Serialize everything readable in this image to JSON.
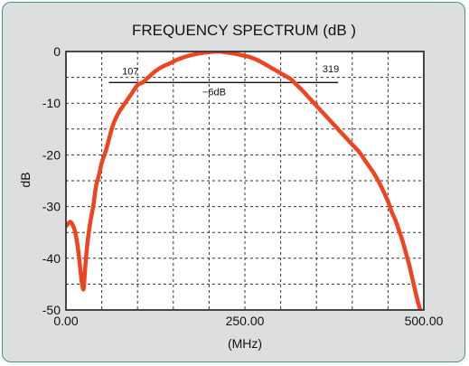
{
  "colors": {
    "panel_bg": "#dcdee0",
    "panel_border": "#3b9a7e",
    "plot_bg": "#ffffff",
    "curve": "#ee4422",
    "grid": "#333333",
    "text": "#111111"
  },
  "chart_data": {
    "type": "line",
    "title": "FREQUENCY SPECTRUM (dB )",
    "xlabel": "(MHz)",
    "ylabel": "dB",
    "xlim": [
      0,
      500
    ],
    "ylim": [
      -50,
      0
    ],
    "x_tick_labels": [
      {
        "value": 0,
        "label": "0.00"
      },
      {
        "value": 250,
        "label": "250.00"
      },
      {
        "value": 500,
        "label": "500.00"
      }
    ],
    "y_tick_labels": [
      {
        "value": 0,
        "label": "0"
      },
      {
        "value": -10,
        "label": "-10"
      },
      {
        "value": -20,
        "label": "-20"
      },
      {
        "value": -30,
        "label": "-30"
      },
      {
        "value": -40,
        "label": "-40"
      },
      {
        "value": -50,
        "label": "-50"
      }
    ],
    "x_grid": [
      0,
      50,
      100,
      150,
      200,
      250,
      300,
      350,
      400,
      450,
      500
    ],
    "y_grid": [
      0,
      -5,
      -10,
      -15,
      -20,
      -25,
      -30,
      -35,
      -40,
      -45,
      -50
    ],
    "grid": true,
    "series": [
      {
        "x": [
          0,
          5,
          8,
          12,
          15,
          18,
          20,
          22,
          24,
          25,
          26,
          28,
          30,
          34,
          38,
          42,
          46,
          50,
          55,
          60,
          65,
          70,
          75,
          80,
          90,
          100,
          107,
          115,
          125,
          135,
          145,
          155,
          165,
          175,
          185,
          195,
          205,
          215,
          225,
          235,
          245,
          255,
          265,
          275,
          285,
          295,
          305,
          315,
          319,
          330,
          340,
          350,
          360,
          370,
          380,
          390,
          400,
          410,
          420,
          430,
          440,
          450,
          455,
          460,
          465,
          470,
          475,
          480,
          485,
          490,
          495,
          500
        ],
        "y": [
          -33.8,
          -33,
          -33.2,
          -34.5,
          -36.5,
          -39.5,
          -42,
          -44.5,
          -46,
          -45.5,
          -43.5,
          -40,
          -37,
          -33,
          -30,
          -26,
          -24,
          -21.5,
          -19.5,
          -17,
          -14.5,
          -12.8,
          -11.5,
          -10.5,
          -8.5,
          -6.5,
          -6,
          -5,
          -3.8,
          -2.9,
          -2.3,
          -1.6,
          -1.1,
          -0.7,
          -0.4,
          -0.2,
          -0.05,
          0,
          -0.2,
          -0.4,
          -0.7,
          -1,
          -1.5,
          -2.2,
          -3,
          -3.8,
          -4.6,
          -5.4,
          -6,
          -7.5,
          -9,
          -10.5,
          -12,
          -13.5,
          -15,
          -16.5,
          -18,
          -19.5,
          -21.5,
          -23.5,
          -26,
          -29,
          -31,
          -32.5,
          -34.5,
          -36.5,
          -39,
          -41.5,
          -44.5,
          -47.5,
          -50,
          -52
        ]
      }
    ],
    "annotations": [
      {
        "type": "hline",
        "y": -6,
        "x_start": 60,
        "x_end": 380,
        "label": "−6dB",
        "label_x": 207
      },
      {
        "type": "text",
        "x": 90,
        "y": -4.5,
        "label": "107"
      },
      {
        "type": "text",
        "x": 370,
        "y": -4,
        "label": "319"
      }
    ]
  }
}
